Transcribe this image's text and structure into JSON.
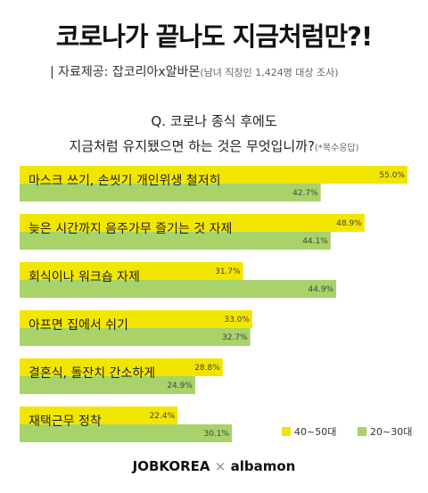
{
  "header": {
    "title": "코로나가 끝나도 지금처럼만?!",
    "source_main": "| 자료제공: 잡코리아x알바몬",
    "source_detail": "(남녀 직장인 1,424명 대상 조사)"
  },
  "question": {
    "line1": "Q. 코로나 종식 후에도",
    "line2": "지금처럼 유지됐으면 하는 것은 무엇입니까?",
    "note": "(*복수응답)"
  },
  "footer": {
    "brand1": "JOBKOREA",
    "separator": "×",
    "brand2": "albamon"
  },
  "colors": {
    "yellow": "#f2e600",
    "green": "#a8d26a"
  },
  "chart_data": {
    "type": "bar",
    "orientation": "horizontal",
    "categories": [
      "마스크 쓰기, 손씻기 개인위생 철저히",
      "늦은 시간까지 음주가무 즐기는 것 자제",
      "회식이나 워크숍 자제",
      "아프면 집에서 쉬기",
      "결혼식, 돌잔치 간소하게",
      "재택근무 정착"
    ],
    "series": [
      {
        "name": "40~50대",
        "values": [
          55.0,
          48.9,
          31.7,
          33.0,
          28.8,
          22.4
        ]
      },
      {
        "name": "20~30대",
        "values": [
          42.7,
          44.1,
          44.9,
          32.7,
          24.9,
          30.1
        ]
      }
    ],
    "value_suffix": "%",
    "xlim": [
      0,
      55
    ],
    "legend_position": "bottom-right"
  }
}
